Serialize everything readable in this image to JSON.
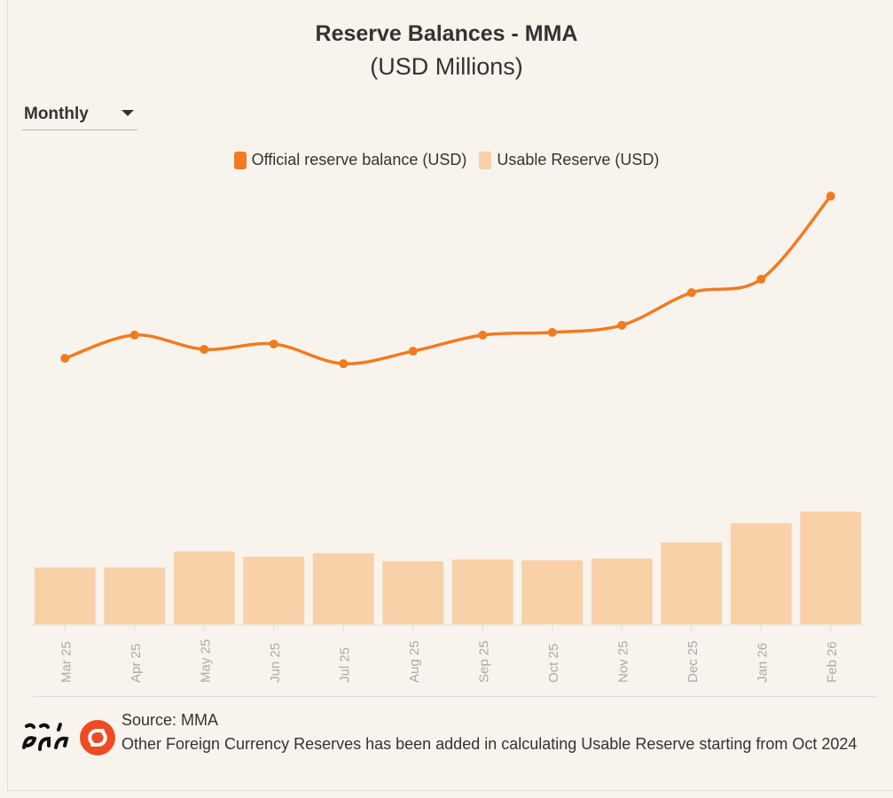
{
  "header": {
    "title": "Reserve Balances - MMA",
    "subtitle": "(USD Millions)"
  },
  "controls": {
    "period_dropdown": "Monthly"
  },
  "chart_data": {
    "type": "bar+line",
    "title": "Reserve Balances - MMA",
    "subtitle": "(USD Millions)",
    "categories": [
      "Mar 25",
      "Apr 25",
      "May 25",
      "Jun 25",
      "Jul 25",
      "Aug 25",
      "Sep 25",
      "Oct 25",
      "Nov 25",
      "Dec 25",
      "Jan 26",
      "Feb 26"
    ],
    "series": [
      {
        "name": "Official reserve balance (USD)",
        "type": "line",
        "color": "#f47a1f",
        "values": [
          595,
          647,
          615,
          627,
          583,
          611,
          647,
          653,
          669,
          742,
          772,
          958
        ]
      },
      {
        "name": "Usable Reserve (USD)",
        "type": "bar",
        "color": "#f9d1a8",
        "values": [
          127,
          127,
          163,
          151,
          159,
          141,
          145,
          143,
          147,
          183,
          226,
          252
        ]
      }
    ],
    "xlabel": "",
    "ylabel": "",
    "ylim": [
      0,
      1000
    ],
    "grid": false,
    "legend": "top-center"
  },
  "footer": {
    "logo_text": "ހާލަތު",
    "source": "Source: MMA",
    "note": "Other Foreign Currency Reserves has been added in calculating Usable Reserve starting from Oct 2024"
  }
}
